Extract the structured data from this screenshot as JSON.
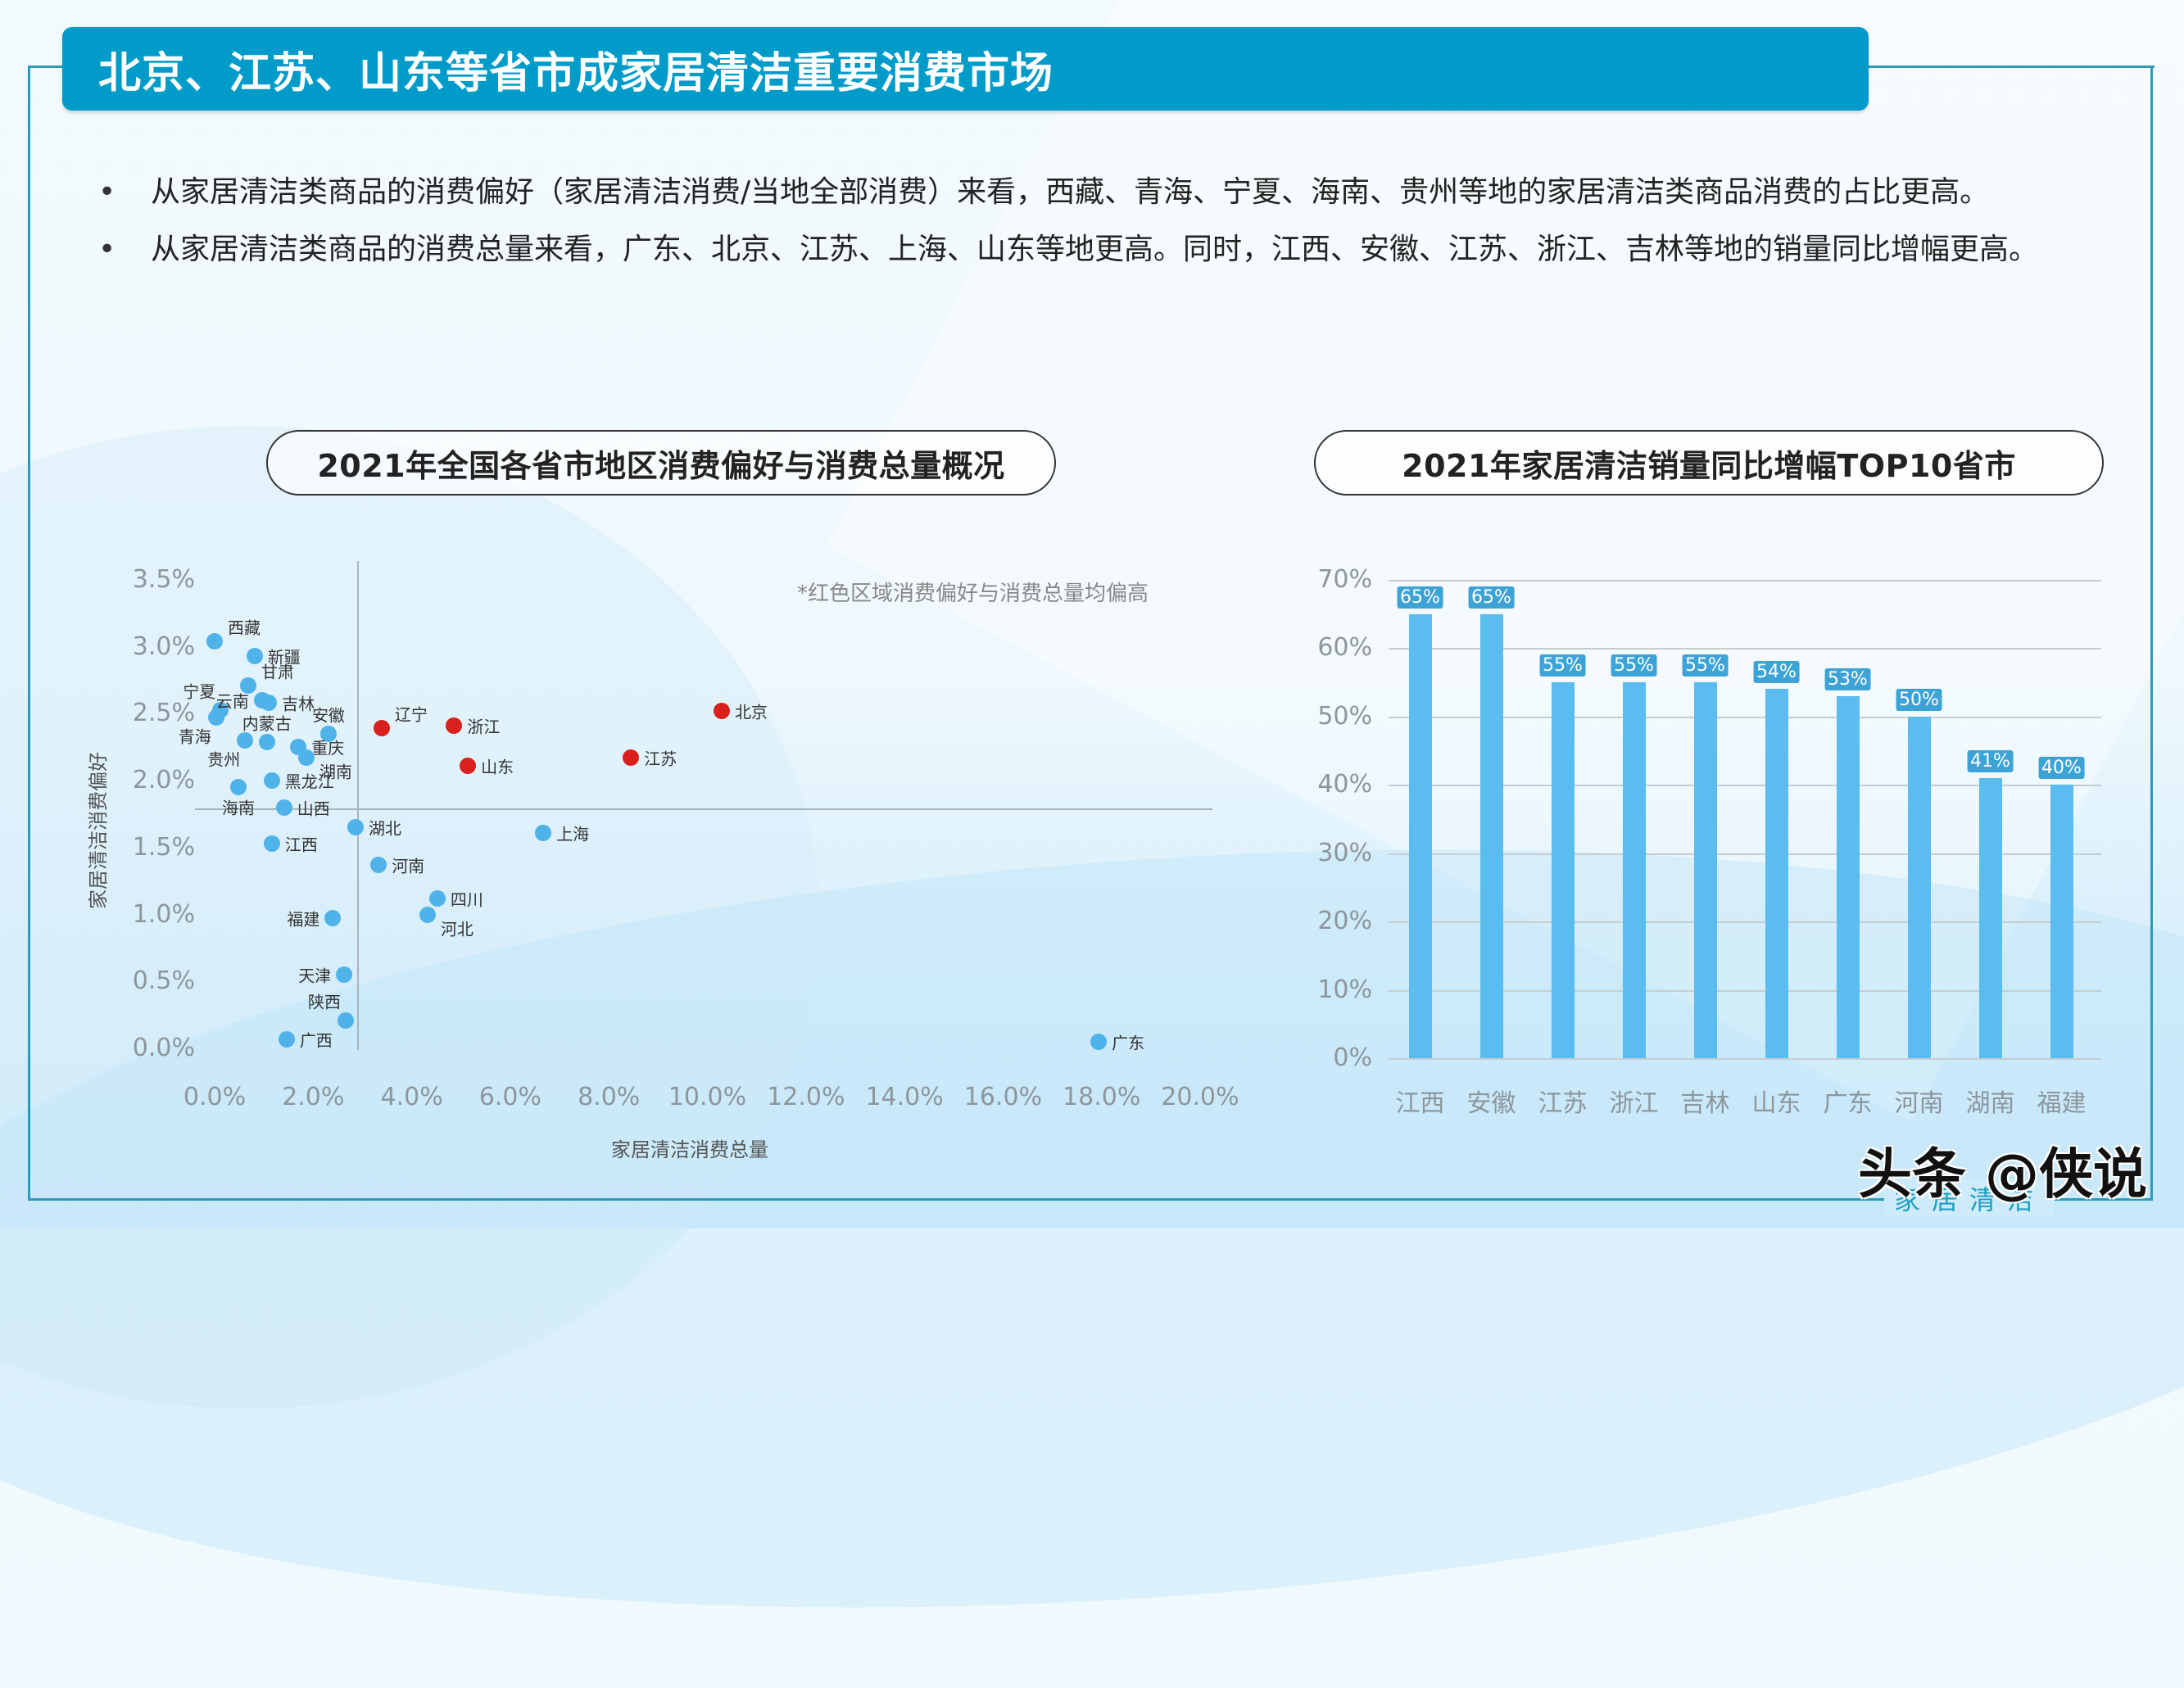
{
  "header": {
    "title": "北京、江苏、山东等省市成家居清洁重要消费市场"
  },
  "bullets": [
    {
      "text": "从家居清洁类商品的消费偏好（家居清洁消费/当地全部消费）来看，西藏、青海、宁夏、海南、贵州等地的家居清洁类商品消费的占比更高。"
    },
    {
      "text": "从家居清洁类商品的消费总量来看，广东、北京、江苏、上海、山东等地更高。同时，江西、安徽、江苏、浙江、吉林等地的销量同比增幅更高。"
    }
  ],
  "bullet_symbol": "•",
  "colors": {
    "header_bg": "#009bc9",
    "frame": "#2a9bb8",
    "point_blue": "#4fb3ea",
    "point_red": "#d9201c",
    "bar": "#5bbcef",
    "bar_label_bg": "#3da3d6"
  },
  "chart_data": [
    {
      "type": "scatter",
      "title": "2021年全国各省市地区消费偏好与消费总量概况",
      "xlabel": "家居清洁消费总量",
      "ylabel": "家居清洁消费偏好",
      "annotation": "*红色区域消费偏好与消费总量均偏高",
      "xlim": [
        0,
        20
      ],
      "ylim": [
        0,
        3.5
      ],
      "x_ticks": [
        "0.0%",
        "2.0%",
        "4.0%",
        "6.0%",
        "8.0%",
        "10.0%",
        "12.0%",
        "14.0%",
        "16.0%",
        "18.0%",
        "20.0%"
      ],
      "y_ticks": [
        "0.0%",
        "0.5%",
        "1.0%",
        "1.5%",
        "2.0%",
        "2.5%",
        "3.0%",
        "3.5%"
      ],
      "reference_lines": {
        "x": 2.9,
        "y": 1.79
      },
      "grid": false,
      "unit": "%",
      "points": [
        {
          "name": "西藏",
          "x": 0.0,
          "y": 3.04,
          "group": "blue",
          "label_pos": "right-up"
        },
        {
          "name": "新疆",
          "x": 0.81,
          "y": 2.93,
          "group": "blue",
          "label_pos": "right"
        },
        {
          "name": "甘肃",
          "x": 0.68,
          "y": 2.71,
          "group": "blue",
          "label_pos": "right-up"
        },
        {
          "name": "宁夏",
          "x": 0.12,
          "y": 2.53,
          "group": "blue",
          "label_pos": "left-up"
        },
        {
          "name": "青海",
          "x": 0.03,
          "y": 2.47,
          "group": "blue",
          "label_pos": "left-down"
        },
        {
          "name": "云南",
          "x": 0.96,
          "y": 2.6,
          "group": "blue",
          "label_pos": "left"
        },
        {
          "name": "吉林",
          "x": 1.1,
          "y": 2.58,
          "group": "blue",
          "label_pos": "right"
        },
        {
          "name": "安徽",
          "x": 2.31,
          "y": 2.35,
          "group": "blue",
          "label_pos": "up"
        },
        {
          "name": "贵州",
          "x": 0.62,
          "y": 2.3,
          "group": "blue",
          "label_pos": "left-down"
        },
        {
          "name": "内蒙古",
          "x": 1.06,
          "y": 2.29,
          "group": "blue",
          "label_pos": "up"
        },
        {
          "name": "重庆",
          "x": 1.7,
          "y": 2.25,
          "group": "blue",
          "label_pos": "right"
        },
        {
          "name": "湖南",
          "x": 1.86,
          "y": 2.17,
          "group": "blue",
          "label_pos": "right-down"
        },
        {
          "name": "黑龙江",
          "x": 1.16,
          "y": 2.0,
          "group": "blue",
          "label_pos": "right"
        },
        {
          "name": "海南",
          "x": 0.48,
          "y": 1.95,
          "group": "blue",
          "label_pos": "down"
        },
        {
          "name": "山西",
          "x": 1.41,
          "y": 1.8,
          "group": "blue",
          "label_pos": "right"
        },
        {
          "name": "湖北",
          "x": 2.86,
          "y": 1.65,
          "group": "blue",
          "label_pos": "right"
        },
        {
          "name": "江西",
          "x": 1.16,
          "y": 1.53,
          "group": "blue",
          "label_pos": "right"
        },
        {
          "name": "河南",
          "x": 3.33,
          "y": 1.37,
          "group": "blue",
          "label_pos": "right"
        },
        {
          "name": "四川",
          "x": 4.52,
          "y": 1.12,
          "group": "blue",
          "label_pos": "right"
        },
        {
          "name": "河北",
          "x": 4.32,
          "y": 1.0,
          "group": "blue",
          "label_pos": "right-down"
        },
        {
          "name": "福建",
          "x": 2.4,
          "y": 0.97,
          "group": "blue",
          "label_pos": "left"
        },
        {
          "name": "天津",
          "x": 2.63,
          "y": 0.55,
          "group": "blue",
          "label_pos": "left"
        },
        {
          "name": "陕西",
          "x": 2.66,
          "y": 0.21,
          "group": "blue",
          "label_pos": "left-up"
        },
        {
          "name": "广西",
          "x": 1.46,
          "y": 0.07,
          "group": "blue",
          "label_pos": "right"
        },
        {
          "name": "辽宁",
          "x": 3.39,
          "y": 2.39,
          "group": "red",
          "label_pos": "right-up"
        },
        {
          "name": "浙江",
          "x": 4.86,
          "y": 2.41,
          "group": "red",
          "label_pos": "right"
        },
        {
          "name": "山东",
          "x": 5.14,
          "y": 2.11,
          "group": "red",
          "label_pos": "right"
        },
        {
          "name": "江苏",
          "x": 8.45,
          "y": 2.17,
          "group": "red",
          "label_pos": "right"
        },
        {
          "name": "北京",
          "x": 10.29,
          "y": 2.52,
          "group": "red",
          "label_pos": "right"
        },
        {
          "name": "上海",
          "x": 6.67,
          "y": 1.61,
          "group": "blue",
          "label_pos": "right"
        },
        {
          "name": "广东",
          "x": 17.94,
          "y": 0.05,
          "group": "blue",
          "label_pos": "right"
        }
      ]
    },
    {
      "type": "bar",
      "title": "2021年家居清洁销量同比增幅TOP10省市",
      "xlabel": "",
      "ylabel": "",
      "categories": [
        "江西",
        "安徽",
        "江苏",
        "浙江",
        "吉林",
        "山东",
        "广东",
        "河南",
        "湖南",
        "福建"
      ],
      "values": [
        65,
        65,
        55,
        55,
        55,
        54,
        53,
        50,
        41,
        40
      ],
      "value_labels": [
        "65%",
        "65%",
        "55%",
        "55%",
        "55%",
        "54%",
        "53%",
        "50%",
        "41%",
        "40%"
      ],
      "ylim": [
        0,
        70
      ],
      "y_ticks": [
        "0%",
        "10%",
        "20%",
        "30%",
        "40%",
        "50%",
        "60%",
        "70%"
      ],
      "grid": true,
      "unit": "%"
    }
  ],
  "watermark": {
    "text": "头条 @侠说"
  },
  "footer": {
    "tag": "家居清洁"
  }
}
